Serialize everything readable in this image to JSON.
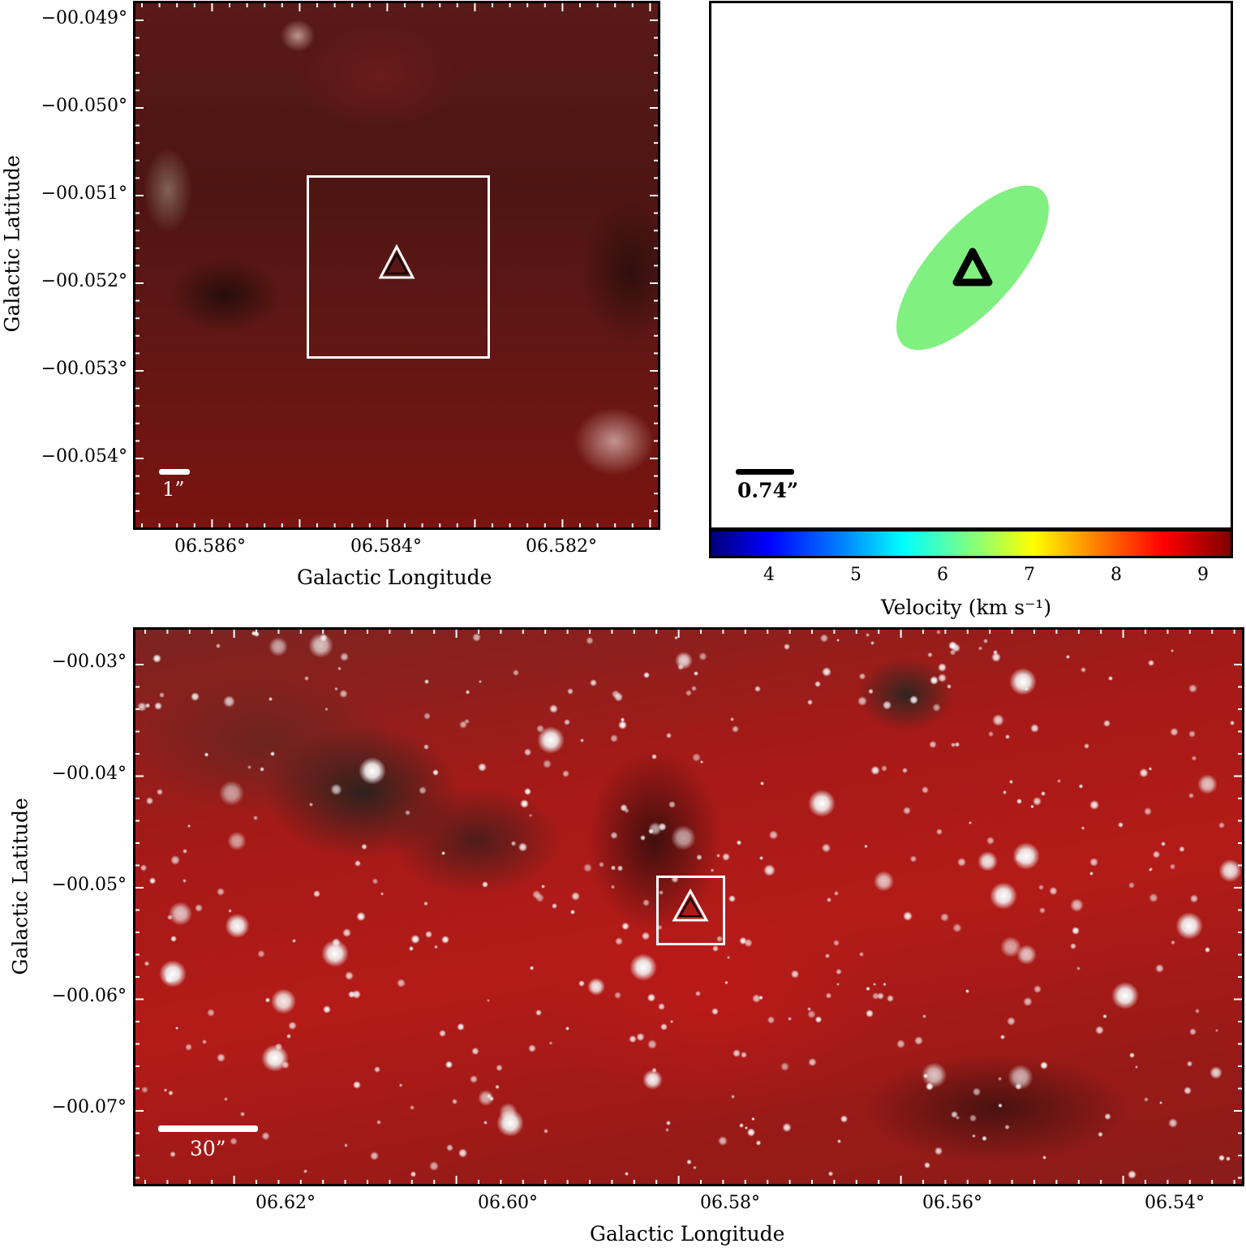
{
  "panel_a": {
    "y_ticks": [
      "−00.049°",
      "−00.050°",
      "−00.051°",
      "−00.052°",
      "−00.053°",
      "−00.054°"
    ],
    "x_ticks": [
      "06.586°",
      "06.584°",
      "06.582°"
    ],
    "x_title": "Galactic Longitude",
    "y_title": "Galactic Latitude",
    "scale_label": "1”"
  },
  "panel_b": {
    "scale_label": "0.74”",
    "ellipse_color": "#80f080",
    "colorbar_ticks": [
      "4",
      "5",
      "6",
      "7",
      "8",
      "9"
    ],
    "colorbar_title": "Velocity (km s⁻¹)"
  },
  "panel_c": {
    "y_ticks": [
      "−00.03°",
      "−00.04°",
      "−00.05°",
      "−00.06°",
      "−00.07°"
    ],
    "x_ticks": [
      "06.62°",
      "06.60°",
      "06.58°",
      "06.56°",
      "06.54°"
    ],
    "x_title": "Galactic Longitude",
    "y_title": "Galactic Latitude",
    "scale_label": "30”"
  }
}
